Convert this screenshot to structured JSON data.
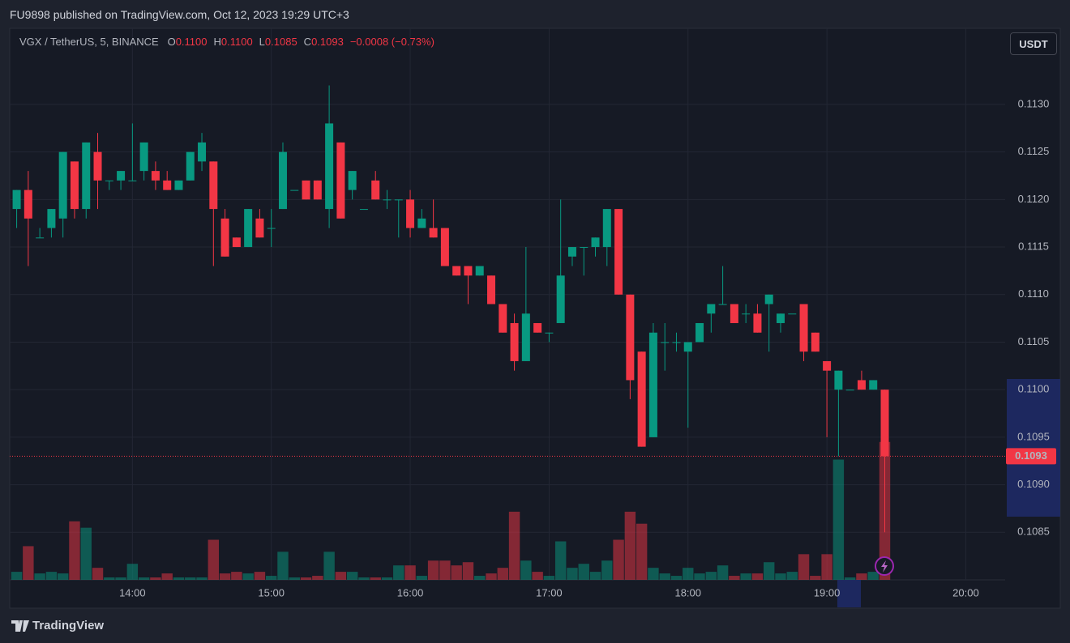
{
  "header": {
    "publisher": "FU9898 published on TradingView.com, Oct 12, 2023 19:29 UTC+3"
  },
  "currency_button": "USDT",
  "footer_logo": "TradingView",
  "chart_data": {
    "type": "candlestick",
    "legend": {
      "symbol": "VGX / TetherUS, 5, BINANCE",
      "ohlc": [
        {
          "key": "O",
          "value": "0.1100"
        },
        {
          "key": "H",
          "value": "0.1100"
        },
        {
          "key": "L",
          "value": "0.1085"
        },
        {
          "key": "C",
          "value": "0.1093"
        }
      ],
      "change": "−0.0008 (−0.73%)"
    },
    "x": [
      "13:10",
      "13:15",
      "13:20",
      "13:25",
      "13:30",
      "13:35",
      "13:40",
      "13:45",
      "13:50",
      "13:55",
      "14:00",
      "14:05",
      "14:10",
      "14:15",
      "14:20",
      "14:25",
      "14:30",
      "14:35",
      "14:40",
      "14:45",
      "14:50",
      "14:55",
      "15:00",
      "15:05",
      "15:10",
      "15:15",
      "15:20",
      "15:25",
      "15:30",
      "15:35",
      "15:40",
      "15:45",
      "15:50",
      "15:55",
      "16:00",
      "16:05",
      "16:10",
      "16:15",
      "16:20",
      "16:25",
      "16:30",
      "16:35",
      "16:40",
      "16:45",
      "16:50",
      "16:55",
      "17:00",
      "17:05",
      "17:10",
      "17:15",
      "17:20",
      "17:25",
      "17:30",
      "17:35",
      "17:40",
      "17:45",
      "17:50",
      "17:55",
      "18:00",
      "18:05",
      "18:10",
      "18:15",
      "18:20",
      "18:25",
      "18:30",
      "18:35",
      "18:40",
      "18:45",
      "18:50",
      "18:55",
      "19:00",
      "19:05",
      "19:10",
      "19:15",
      "19:20",
      "19:25"
    ],
    "open": [
      0.1119,
      0.1121,
      0.1116,
      0.1117,
      0.1118,
      0.1124,
      0.1119,
      0.1125,
      0.1122,
      0.1122,
      0.1122,
      0.1123,
      0.1123,
      0.1122,
      0.1121,
      0.1122,
      0.1124,
      0.1124,
      0.1118,
      0.1116,
      0.1115,
      0.1118,
      0.1117,
      0.1119,
      0.1121,
      0.1122,
      0.1122,
      0.1119,
      0.1126,
      0.1121,
      0.1119,
      0.1122,
      0.112,
      0.112,
      0.112,
      0.1117,
      0.1117,
      0.1117,
      0.1113,
      0.1113,
      0.1112,
      0.1112,
      0.1109,
      0.1107,
      0.1103,
      0.1107,
      0.1106,
      0.1107,
      0.1114,
      0.1115,
      0.1115,
      0.1115,
      0.1119,
      0.111,
      0.1104,
      0.1095,
      0.1105,
      0.1105,
      0.1104,
      0.1105,
      0.1108,
      0.1109,
      0.1109,
      0.1108,
      0.1108,
      0.1109,
      0.1107,
      0.1108,
      0.1109,
      0.1106,
      0.1103,
      0.11,
      0.11,
      0.1101,
      0.11,
      0.11
    ],
    "high": [
      0.1121,
      0.1123,
      0.1117,
      0.1119,
      0.1125,
      0.1124,
      0.1126,
      0.1127,
      0.1122,
      0.1123,
      0.1128,
      0.1126,
      0.1124,
      0.1123,
      0.1122,
      0.1125,
      0.1127,
      0.1124,
      0.1119,
      0.1116,
      0.1119,
      0.1119,
      0.1119,
      0.1126,
      0.1121,
      0.1122,
      0.1122,
      0.1132,
      0.1126,
      0.1123,
      0.1119,
      0.1123,
      0.1121,
      0.112,
      0.1121,
      0.1119,
      0.112,
      0.1117,
      0.1113,
      0.1113,
      0.1113,
      0.1112,
      0.1109,
      0.1108,
      0.1115,
      0.1107,
      0.1106,
      0.112,
      0.1115,
      0.1115,
      0.1116,
      0.1119,
      0.1119,
      0.111,
      0.1104,
      0.1107,
      0.1107,
      0.1106,
      0.1105,
      0.1107,
      0.1109,
      0.1113,
      0.1109,
      0.1109,
      0.1109,
      0.111,
      0.1108,
      0.1108,
      0.1109,
      0.1106,
      0.1103,
      0.1102,
      0.11,
      0.1102,
      0.1101,
      0.11
    ],
    "low": [
      0.1117,
      0.1113,
      0.1116,
      0.1116,
      0.1116,
      0.1118,
      0.1118,
      0.1119,
      0.1121,
      0.1121,
      0.1122,
      0.1122,
      0.1121,
      0.1121,
      0.1121,
      0.1122,
      0.1123,
      0.1113,
      0.1114,
      0.1115,
      0.1115,
      0.1116,
      0.1115,
      0.1119,
      0.1121,
      0.112,
      0.112,
      0.1117,
      0.1118,
      0.112,
      0.1119,
      0.112,
      0.1119,
      0.1116,
      0.1116,
      0.1117,
      0.1116,
      0.1113,
      0.1112,
      0.1109,
      0.1112,
      0.1109,
      0.1106,
      0.1102,
      0.1103,
      0.1106,
      0.1105,
      0.1107,
      0.1113,
      0.1112,
      0.1114,
      0.1113,
      0.111,
      0.1099,
      0.1094,
      0.1095,
      0.1102,
      0.1104,
      0.1096,
      0.1105,
      0.1106,
      0.1109,
      0.1107,
      0.1107,
      0.1106,
      0.1104,
      0.1106,
      0.1108,
      0.1103,
      0.1104,
      0.1095,
      0.1093,
      0.11,
      0.11,
      0.11,
      0.1085
    ],
    "close": [
      0.1121,
      0.1118,
      0.1116,
      0.1119,
      0.1125,
      0.1119,
      0.1126,
      0.1122,
      0.1122,
      0.1123,
      0.1122,
      0.1126,
      0.1122,
      0.1121,
      0.1122,
      0.1125,
      0.1126,
      0.1119,
      0.1114,
      0.1115,
      0.1119,
      0.1116,
      0.1117,
      0.1125,
      0.1121,
      0.112,
      0.112,
      0.1128,
      0.1118,
      0.1123,
      0.1119,
      0.112,
      0.112,
      0.112,
      0.1117,
      0.1118,
      0.1116,
      0.1113,
      0.1112,
      0.1112,
      0.1113,
      0.1109,
      0.1106,
      0.1103,
      0.1108,
      0.1106,
      0.1106,
      0.1112,
      0.1115,
      0.1115,
      0.1116,
      0.1119,
      0.111,
      0.1101,
      0.1094,
      0.1106,
      0.1105,
      0.1105,
      0.1105,
      0.1107,
      0.1109,
      0.1109,
      0.1107,
      0.1108,
      0.1106,
      0.111,
      0.1108,
      0.1108,
      0.1104,
      0.1104,
      0.1102,
      0.1102,
      0.11,
      0.11,
      0.1101,
      0.1093
    ],
    "volume": [
      10,
      42,
      8,
      10,
      8,
      73,
      65,
      15,
      3,
      3,
      20,
      3,
      3,
      8,
      3,
      3,
      3,
      50,
      8,
      10,
      8,
      10,
      5,
      35,
      3,
      3,
      5,
      35,
      10,
      10,
      3,
      3,
      3,
      18,
      18,
      5,
      24,
      24,
      18,
      22,
      5,
      8,
      15,
      85,
      24,
      10,
      5,
      48,
      15,
      20,
      10,
      24,
      50,
      85,
      70,
      15,
      8,
      5,
      15,
      8,
      10,
      18,
      5,
      8,
      8,
      22,
      8,
      10,
      32,
      5,
      32,
      150,
      3,
      8,
      10,
      172
    ],
    "up_color": "#089981",
    "down_color": "#f23645",
    "xlim": [
      "13:07",
      "20:17"
    ],
    "xticks": [
      "14:00",
      "15:00",
      "16:00",
      "17:00",
      "18:00",
      "19:00",
      "20:00"
    ],
    "ylim": [
      0.108,
      0.1138
    ],
    "yticks": [
      {
        "value": 0.1085,
        "label": "0.1085"
      },
      {
        "value": 0.109,
        "label": "0.1090"
      },
      {
        "value": 0.1095,
        "label": "0.1095"
      },
      {
        "value": 0.11,
        "label": "0.1100"
      },
      {
        "value": 0.1105,
        "label": "0.1105"
      },
      {
        "value": 0.111,
        "label": "0.1110"
      },
      {
        "value": 0.1115,
        "label": "0.1115"
      },
      {
        "value": 0.112,
        "label": "0.1120"
      },
      {
        "value": 0.1125,
        "label": "0.1125"
      },
      {
        "value": 0.113,
        "label": "0.1130"
      }
    ],
    "last_price": {
      "value": 0.1093,
      "label": "0.1093"
    },
    "grid": true
  }
}
